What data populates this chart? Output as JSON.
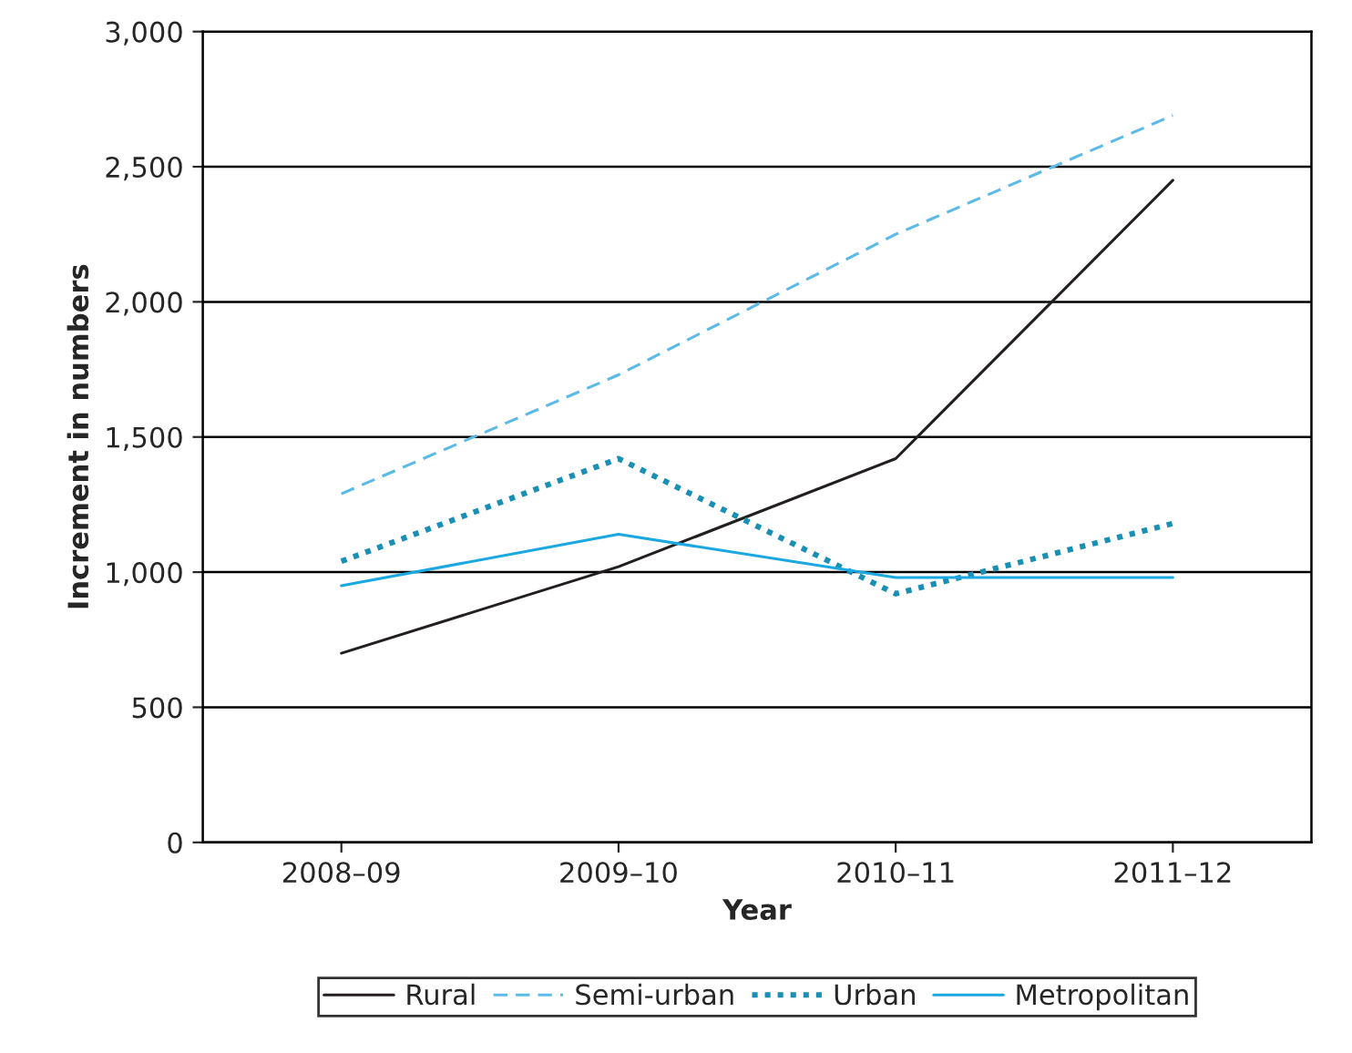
{
  "chart_data": {
    "type": "line",
    "xlabel": "Year",
    "ylabel": "Increment in numbers",
    "categories": [
      "2008–09",
      "2009–10",
      "2010–11",
      "2011–12"
    ],
    "series": [
      {
        "name": "Rural",
        "color": "#231f20",
        "line_style": "solid",
        "values": [
          700,
          1020,
          1420,
          2450
        ]
      },
      {
        "name": "Semi-urban",
        "color": "#5bbbe6",
        "line_style": "dashed",
        "values": [
          1290,
          1730,
          2250,
          2690
        ]
      },
      {
        "name": "Urban",
        "color": "#1a8fb5",
        "line_style": "dotted",
        "values": [
          1040,
          1420,
          920,
          1180
        ]
      },
      {
        "name": "Metropolitan",
        "color": "#1ba7e0",
        "line_style": "solid",
        "values": [
          950,
          1140,
          980,
          980
        ]
      }
    ],
    "ylim": [
      0,
      3000
    ],
    "yticks": [
      0,
      500,
      {
        "value": 1000,
        "label": "1,000"
      },
      {
        "value": 1500,
        "label": "1,500"
      },
      {
        "value": 2000,
        "label": "2,000"
      },
      {
        "value": 2500,
        "label": "2,500"
      },
      {
        "value": 3000,
        "label": "3,000"
      }
    ],
    "grid": "y",
    "legend": "bottom",
    "marker": "none"
  }
}
